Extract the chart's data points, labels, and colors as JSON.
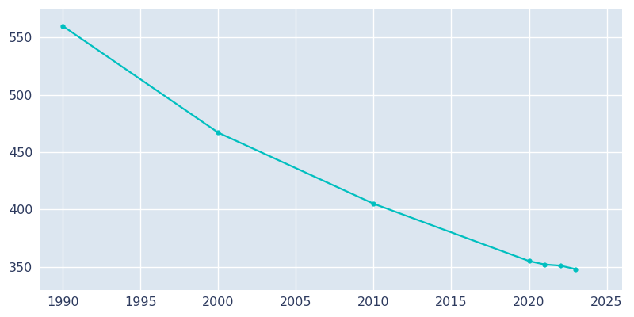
{
  "years": [
    1990,
    2000,
    2010,
    2020,
    2021,
    2022,
    2023
  ],
  "values": [
    560,
    467,
    405,
    355,
    352,
    351,
    348
  ],
  "line_color": "#00BFBF",
  "marker": "o",
  "marker_size": 3.5,
  "linewidth": 1.6,
  "background_color": "#ffffff",
  "axes_bg_color": "#dce6f0",
  "grid_color": "#ffffff",
  "xlabel": "",
  "ylabel": "",
  "xlim": [
    1988.5,
    2026
  ],
  "ylim": [
    330,
    575
  ],
  "xticks": [
    1990,
    1995,
    2000,
    2005,
    2010,
    2015,
    2020,
    2025
  ],
  "yticks": [
    350,
    400,
    450,
    500,
    550
  ],
  "tick_label_color": "#2d3a5e",
  "tick_fontsize": 11.5
}
